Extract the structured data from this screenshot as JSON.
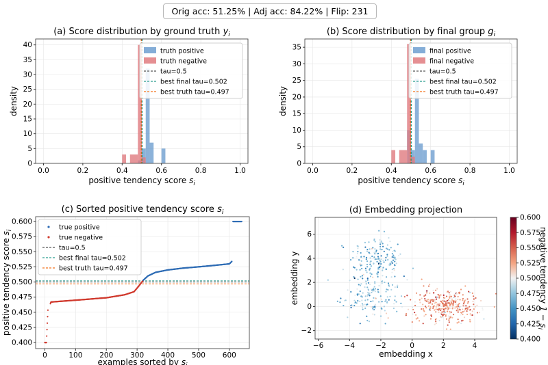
{
  "header": {
    "text": "Orig acc: 51.25%  |  Adj acc: 84.22%  |  Flip: 231"
  },
  "colors": {
    "positive_hist": "#6f9fd0",
    "negative_hist": "#e07b7f",
    "tau": "#555555",
    "best_final": "#2a9d8f",
    "best_truth": "#f4731f",
    "true_positive": "#2f6db5",
    "true_negative": "#d03a2e",
    "grid": "#e6e6e6"
  },
  "chart_data": [
    {
      "id": "a",
      "type": "bar",
      "title": "(a) Score distribution by ground truth ",
      "title_var": "y",
      "title_sub": "i",
      "xlabel": "positive tendency score ",
      "xlabel_var": "s",
      "xlabel_sub": "i",
      "ylabel": "density",
      "xlim": [
        -0.04,
        1.04
      ],
      "ylim": [
        0,
        42
      ],
      "xticks": [
        "0.0",
        "0.2",
        "0.4",
        "0.6",
        "0.8",
        "1.0"
      ],
      "yticks": [
        "0",
        "5",
        "10",
        "15",
        "20",
        "25",
        "30",
        "35",
        "40"
      ],
      "bin_width": 0.02,
      "series": [
        {
          "name": "truth positive",
          "bins": [
            [
              0.48,
              1
            ],
            [
              0.5,
              5
            ],
            [
              0.52,
              32
            ],
            [
              0.54,
              7
            ],
            [
              0.6,
              5
            ]
          ]
        },
        {
          "name": "truth negative",
          "bins": [
            [
              0.4,
              3
            ],
            [
              0.44,
              3
            ],
            [
              0.46,
              3
            ],
            [
              0.48,
              40
            ],
            [
              0.5,
              2
            ]
          ]
        }
      ],
      "lines": [
        {
          "name": "tau=0.5",
          "x": 0.5
        },
        {
          "name": "best final tau=0.502",
          "x": 0.502
        },
        {
          "name": "best truth tau=0.497",
          "x": 0.497
        }
      ],
      "legend": "top-right",
      "grid": true
    },
    {
      "id": "b",
      "type": "bar",
      "title": "(b) Score distribution by final group ",
      "title_var": "g",
      "title_sub": "i",
      "xlabel": "positive tendency score ",
      "xlabel_var": "s",
      "xlabel_sub": "i",
      "ylabel": "density",
      "xlim": [
        -0.04,
        1.04
      ],
      "ylim": [
        0,
        37.5
      ],
      "xticks": [
        "0.0",
        "0.2",
        "0.4",
        "0.6",
        "0.8",
        "1.0"
      ],
      "yticks": [
        "0",
        "5",
        "10",
        "15",
        "20",
        "25",
        "30",
        "35"
      ],
      "bin_width": 0.02,
      "series": [
        {
          "name": "final positive",
          "bins": [
            [
              0.48,
              10
            ],
            [
              0.5,
              4
            ],
            [
              0.52,
              25.5
            ],
            [
              0.54,
              6
            ],
            [
              0.56,
              4
            ],
            [
              0.6,
              4
            ]
          ]
        },
        {
          "name": "final negative",
          "bins": [
            [
              0.4,
              4
            ],
            [
              0.44,
              4
            ],
            [
              0.46,
              4
            ],
            [
              0.48,
              36
            ],
            [
              0.5,
              2
            ]
          ]
        }
      ],
      "lines": [
        {
          "name": "tau=0.5",
          "x": 0.5
        },
        {
          "name": "best final tau=0.502",
          "x": 0.502
        },
        {
          "name": "best truth tau=0.497",
          "x": 0.497
        }
      ],
      "legend": "top-right",
      "grid": true
    },
    {
      "id": "c",
      "type": "scatter",
      "title": "(c) Sorted positive tendency score ",
      "title_var": "s",
      "title_sub": "i",
      "xlabel": "examples sorted by ",
      "xlabel_var": "s",
      "xlabel_sub": "i",
      "ylabel": "positive tendency score ",
      "ylabel_var": "s",
      "ylabel_sub": "i",
      "xlim": [
        -30,
        665
      ],
      "ylim": [
        0.39,
        0.608
      ],
      "xticks": [
        0,
        100,
        200,
        300,
        400,
        500,
        600
      ],
      "yticks": [
        "0.400",
        "0.425",
        "0.450",
        "0.475",
        "0.500",
        "0.525",
        "0.550",
        "0.575",
        "0.600"
      ],
      "curve_knots": [
        [
          0,
          0.4
        ],
        [
          5,
          0.4
        ],
        [
          10,
          0.4535
        ],
        [
          20,
          0.467
        ],
        [
          100,
          0.47
        ],
        [
          200,
          0.474
        ],
        [
          260,
          0.479
        ],
        [
          290,
          0.484
        ],
        [
          305,
          0.493
        ],
        [
          320,
          0.503
        ],
        [
          335,
          0.51
        ],
        [
          360,
          0.516
        ],
        [
          400,
          0.52
        ],
        [
          450,
          0.523
        ],
        [
          520,
          0.526
        ],
        [
          600,
          0.53
        ],
        [
          608,
          0.534
        ],
        [
          612,
          0.6
        ],
        [
          640,
          0.6
        ]
      ],
      "split_index": 320,
      "series": [
        {
          "name": "true positive"
        },
        {
          "name": "true negative"
        }
      ],
      "lines": [
        {
          "name": "tau=0.5",
          "y": 0.5
        },
        {
          "name": "best final tau=0.502",
          "y": 0.502
        },
        {
          "name": "best truth tau=0.497",
          "y": 0.497
        }
      ],
      "legend": "upper-left",
      "grid": true
    },
    {
      "id": "d",
      "type": "scatter",
      "title": "(d) Embedding projection",
      "xlabel": "embedding x",
      "ylabel": "embedding y",
      "xlim": [
        -6.2,
        5.4
      ],
      "ylim": [
        -2.7,
        7.4
      ],
      "xticks": [
        "−6",
        "−4",
        "−2",
        "0",
        "2",
        "4"
      ],
      "yticks": [
        "−2",
        "0",
        "2",
        "4",
        "6"
      ],
      "clusters": [
        {
          "center": [
            -2.3,
            3.9
          ],
          "spread": [
            0.85,
            1.0
          ],
          "count": 170,
          "value": 0.468
        },
        {
          "center": [
            -2.5,
            0.8
          ],
          "spread": [
            1.0,
            0.95
          ],
          "count": 160,
          "value": 0.473
        },
        {
          "center": [
            2.2,
            0.1
          ],
          "spread": [
            1.05,
            0.72
          ],
          "count": 330,
          "value": 0.528
        }
      ],
      "colorbar": {
        "label": "negative tendency ",
        "label_math": "1 − s",
        "label_sub": "i",
        "vmin": 0.4,
        "vmax": 0.6,
        "ticks": [
          "0.400",
          "0.425",
          "0.450",
          "0.475",
          "0.500",
          "0.525",
          "0.550",
          "0.575",
          "0.600"
        ],
        "colormap": "RdBu_r"
      },
      "grid": true
    }
  ]
}
